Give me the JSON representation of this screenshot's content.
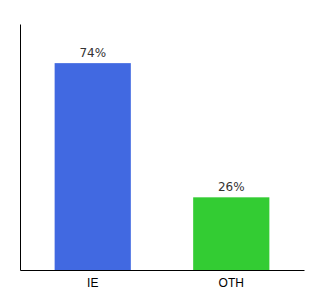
{
  "chart_data": {
    "type": "bar",
    "categories": [
      "IE",
      "OTH"
    ],
    "values": [
      74,
      26
    ],
    "colors": [
      "#4169e1",
      "#33cc33"
    ],
    "ylim": [
      0,
      88
    ],
    "data_labels": true,
    "value_labels": [
      "74%",
      "26%"
    ],
    "tick_labels": "x"
  }
}
